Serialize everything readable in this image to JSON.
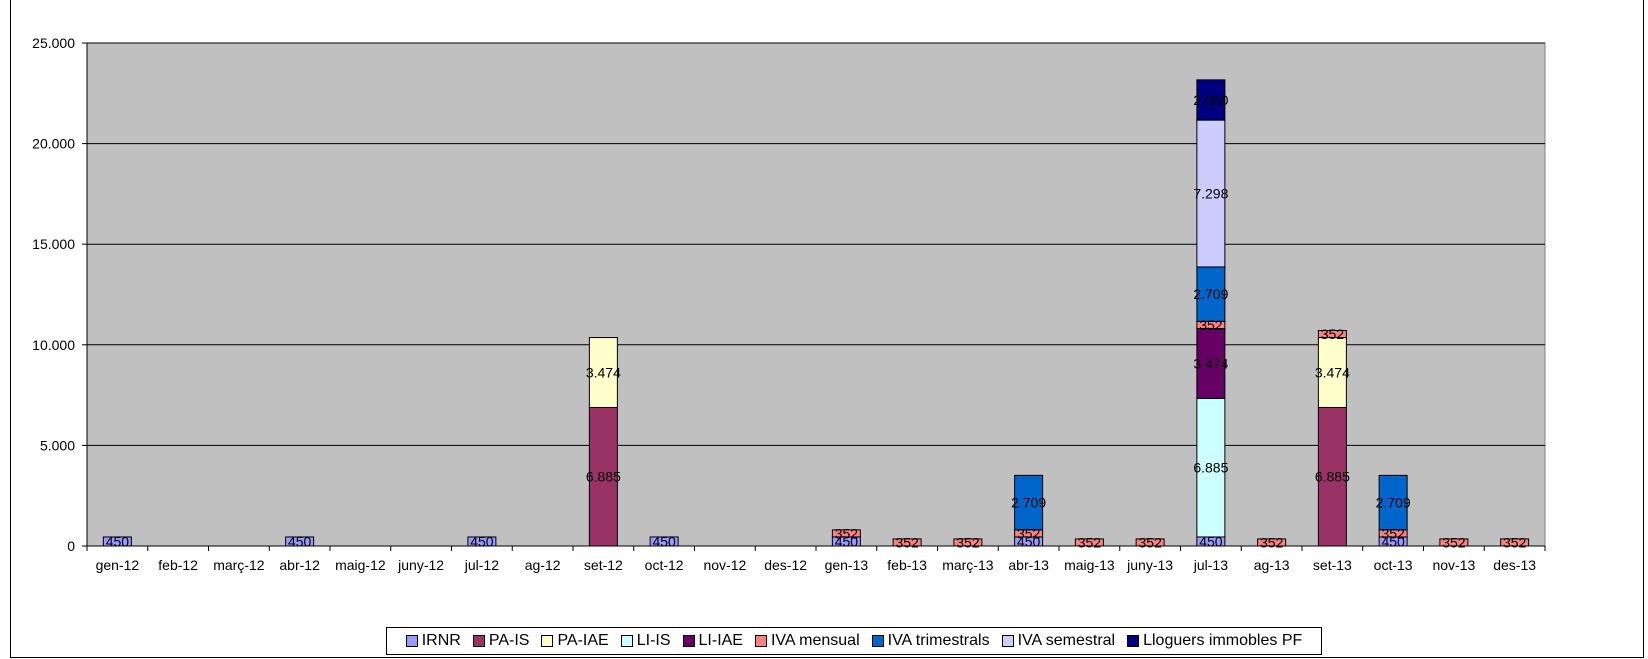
{
  "chart_data": {
    "type": "bar",
    "stacked": true,
    "categories": [
      "gen-12",
      "feb-12",
      "març-12",
      "abr-12",
      "maig-12",
      "juny-12",
      "jul-12",
      "ag-12",
      "set-12",
      "oct-12",
      "nov-12",
      "des-12",
      "gen-13",
      "feb-13",
      "març-13",
      "abr-13",
      "maig-13",
      "juny-13",
      "jul-13",
      "ag-13",
      "set-13",
      "oct-13",
      "nov-13",
      "des-13"
    ],
    "ylim": [
      0,
      25000
    ],
    "yticks": [
      "0",
      "5.000",
      "10.000",
      "15.000",
      "20.000",
      "25.000"
    ],
    "ytick_values": [
      0,
      5000,
      10000,
      15000,
      20000,
      25000
    ],
    "grid": true,
    "legend_position": "bottom",
    "series": [
      {
        "name": "IRNR",
        "color": "#9999ff",
        "values": [
          450,
          0,
          0,
          450,
          0,
          0,
          450,
          0,
          0,
          450,
          0,
          0,
          450,
          0,
          0,
          450,
          0,
          0,
          450,
          0,
          0,
          450,
          0,
          0
        ],
        "labels": [
          "450",
          "",
          "",
          "450",
          "",
          "",
          "450",
          "",
          "",
          "450",
          "",
          "",
          "450",
          "",
          "",
          "450",
          "",
          "",
          "450",
          "",
          "",
          "450",
          "",
          ""
        ]
      },
      {
        "name": "PA-IS",
        "color": "#993366",
        "values": [
          0,
          0,
          0,
          0,
          0,
          0,
          0,
          0,
          6885,
          0,
          0,
          0,
          0,
          0,
          0,
          0,
          0,
          0,
          0,
          0,
          6885,
          0,
          0,
          0
        ],
        "labels": [
          "",
          "",
          "",
          "",
          "",
          "",
          "",
          "",
          "6.885",
          "",
          "",
          "",
          "",
          "",
          "",
          "",
          "",
          "",
          "",
          "",
          "6.885",
          "",
          "",
          ""
        ]
      },
      {
        "name": "PA-IAE",
        "color": "#ffffcc",
        "values": [
          0,
          0,
          0,
          0,
          0,
          0,
          0,
          0,
          3474,
          0,
          0,
          0,
          0,
          0,
          0,
          0,
          0,
          0,
          0,
          0,
          3474,
          0,
          0,
          0
        ],
        "labels": [
          "",
          "",
          "",
          "",
          "",
          "",
          "",
          "",
          "3.474",
          "",
          "",
          "",
          "",
          "",
          "",
          "",
          "",
          "",
          "",
          "",
          "3.474",
          "",
          "",
          ""
        ]
      },
      {
        "name": "LI-IS",
        "color": "#ccffff",
        "values": [
          0,
          0,
          0,
          0,
          0,
          0,
          0,
          0,
          0,
          0,
          0,
          0,
          0,
          0,
          0,
          0,
          0,
          0,
          6885,
          0,
          0,
          0,
          0,
          0
        ],
        "labels": [
          "",
          "",
          "",
          "",
          "",
          "",
          "",
          "",
          "",
          "",
          "",
          "",
          "",
          "",
          "",
          "",
          "",
          "",
          "6.885",
          "",
          "",
          "",
          "",
          ""
        ]
      },
      {
        "name": "LI-IAE",
        "color": "#660066",
        "values": [
          0,
          0,
          0,
          0,
          0,
          0,
          0,
          0,
          0,
          0,
          0,
          0,
          0,
          0,
          0,
          0,
          0,
          0,
          3474,
          0,
          0,
          0,
          0,
          0
        ],
        "labels": [
          "",
          "",
          "",
          "",
          "",
          "",
          "",
          "",
          "",
          "",
          "",
          "",
          "",
          "",
          "",
          "",
          "",
          "",
          "3.474",
          "",
          "",
          "",
          "",
          ""
        ]
      },
      {
        "name": "IVA mensual",
        "color": "#ff8080",
        "values": [
          0,
          0,
          0,
          0,
          0,
          0,
          0,
          0,
          0,
          0,
          0,
          0,
          352,
          352,
          352,
          352,
          352,
          352,
          352,
          352,
          352,
          352,
          352,
          352
        ],
        "labels": [
          "",
          "",
          "",
          "",
          "",
          "",
          "",
          "",
          "",
          "",
          "",
          "",
          "352",
          "352",
          "352",
          "352",
          "352",
          "352",
          "352",
          "352",
          "352",
          "352",
          "352",
          "352"
        ]
      },
      {
        "name": "IVA trimestrals",
        "color": "#0066cc",
        "values": [
          0,
          0,
          0,
          0,
          0,
          0,
          0,
          0,
          0,
          0,
          0,
          0,
          0,
          0,
          0,
          2709,
          0,
          0,
          2709,
          0,
          0,
          2709,
          0,
          0
        ],
        "labels": [
          "",
          "",
          "",
          "",
          "",
          "",
          "",
          "",
          "",
          "",
          "",
          "",
          "",
          "",
          "",
          "2.709",
          "",
          "",
          "2.709",
          "",
          "",
          "2.709",
          "",
          ""
        ]
      },
      {
        "name": "IVA semestral",
        "color": "#ccccff",
        "values": [
          0,
          0,
          0,
          0,
          0,
          0,
          0,
          0,
          0,
          0,
          0,
          0,
          0,
          0,
          0,
          0,
          0,
          0,
          7298,
          0,
          0,
          0,
          0,
          0
        ],
        "labels": [
          "",
          "",
          "",
          "",
          "",
          "",
          "",
          "",
          "",
          "",
          "",
          "",
          "",
          "",
          "",
          "",
          "",
          "",
          "7.298",
          "",
          "",
          "",
          "",
          ""
        ]
      },
      {
        "name": "Lloguers immobles PF",
        "color": "#000080",
        "values": [
          0,
          0,
          0,
          0,
          0,
          0,
          0,
          0,
          0,
          0,
          0,
          0,
          0,
          0,
          0,
          0,
          0,
          0,
          2000,
          0,
          0,
          0,
          0,
          0
        ],
        "labels": [
          "",
          "",
          "",
          "",
          "",
          "",
          "",
          "",
          "",
          "",
          "",
          "",
          "",
          "",
          "",
          "",
          "",
          "",
          "2.000",
          "",
          "",
          "",
          "",
          ""
        ]
      }
    ]
  }
}
